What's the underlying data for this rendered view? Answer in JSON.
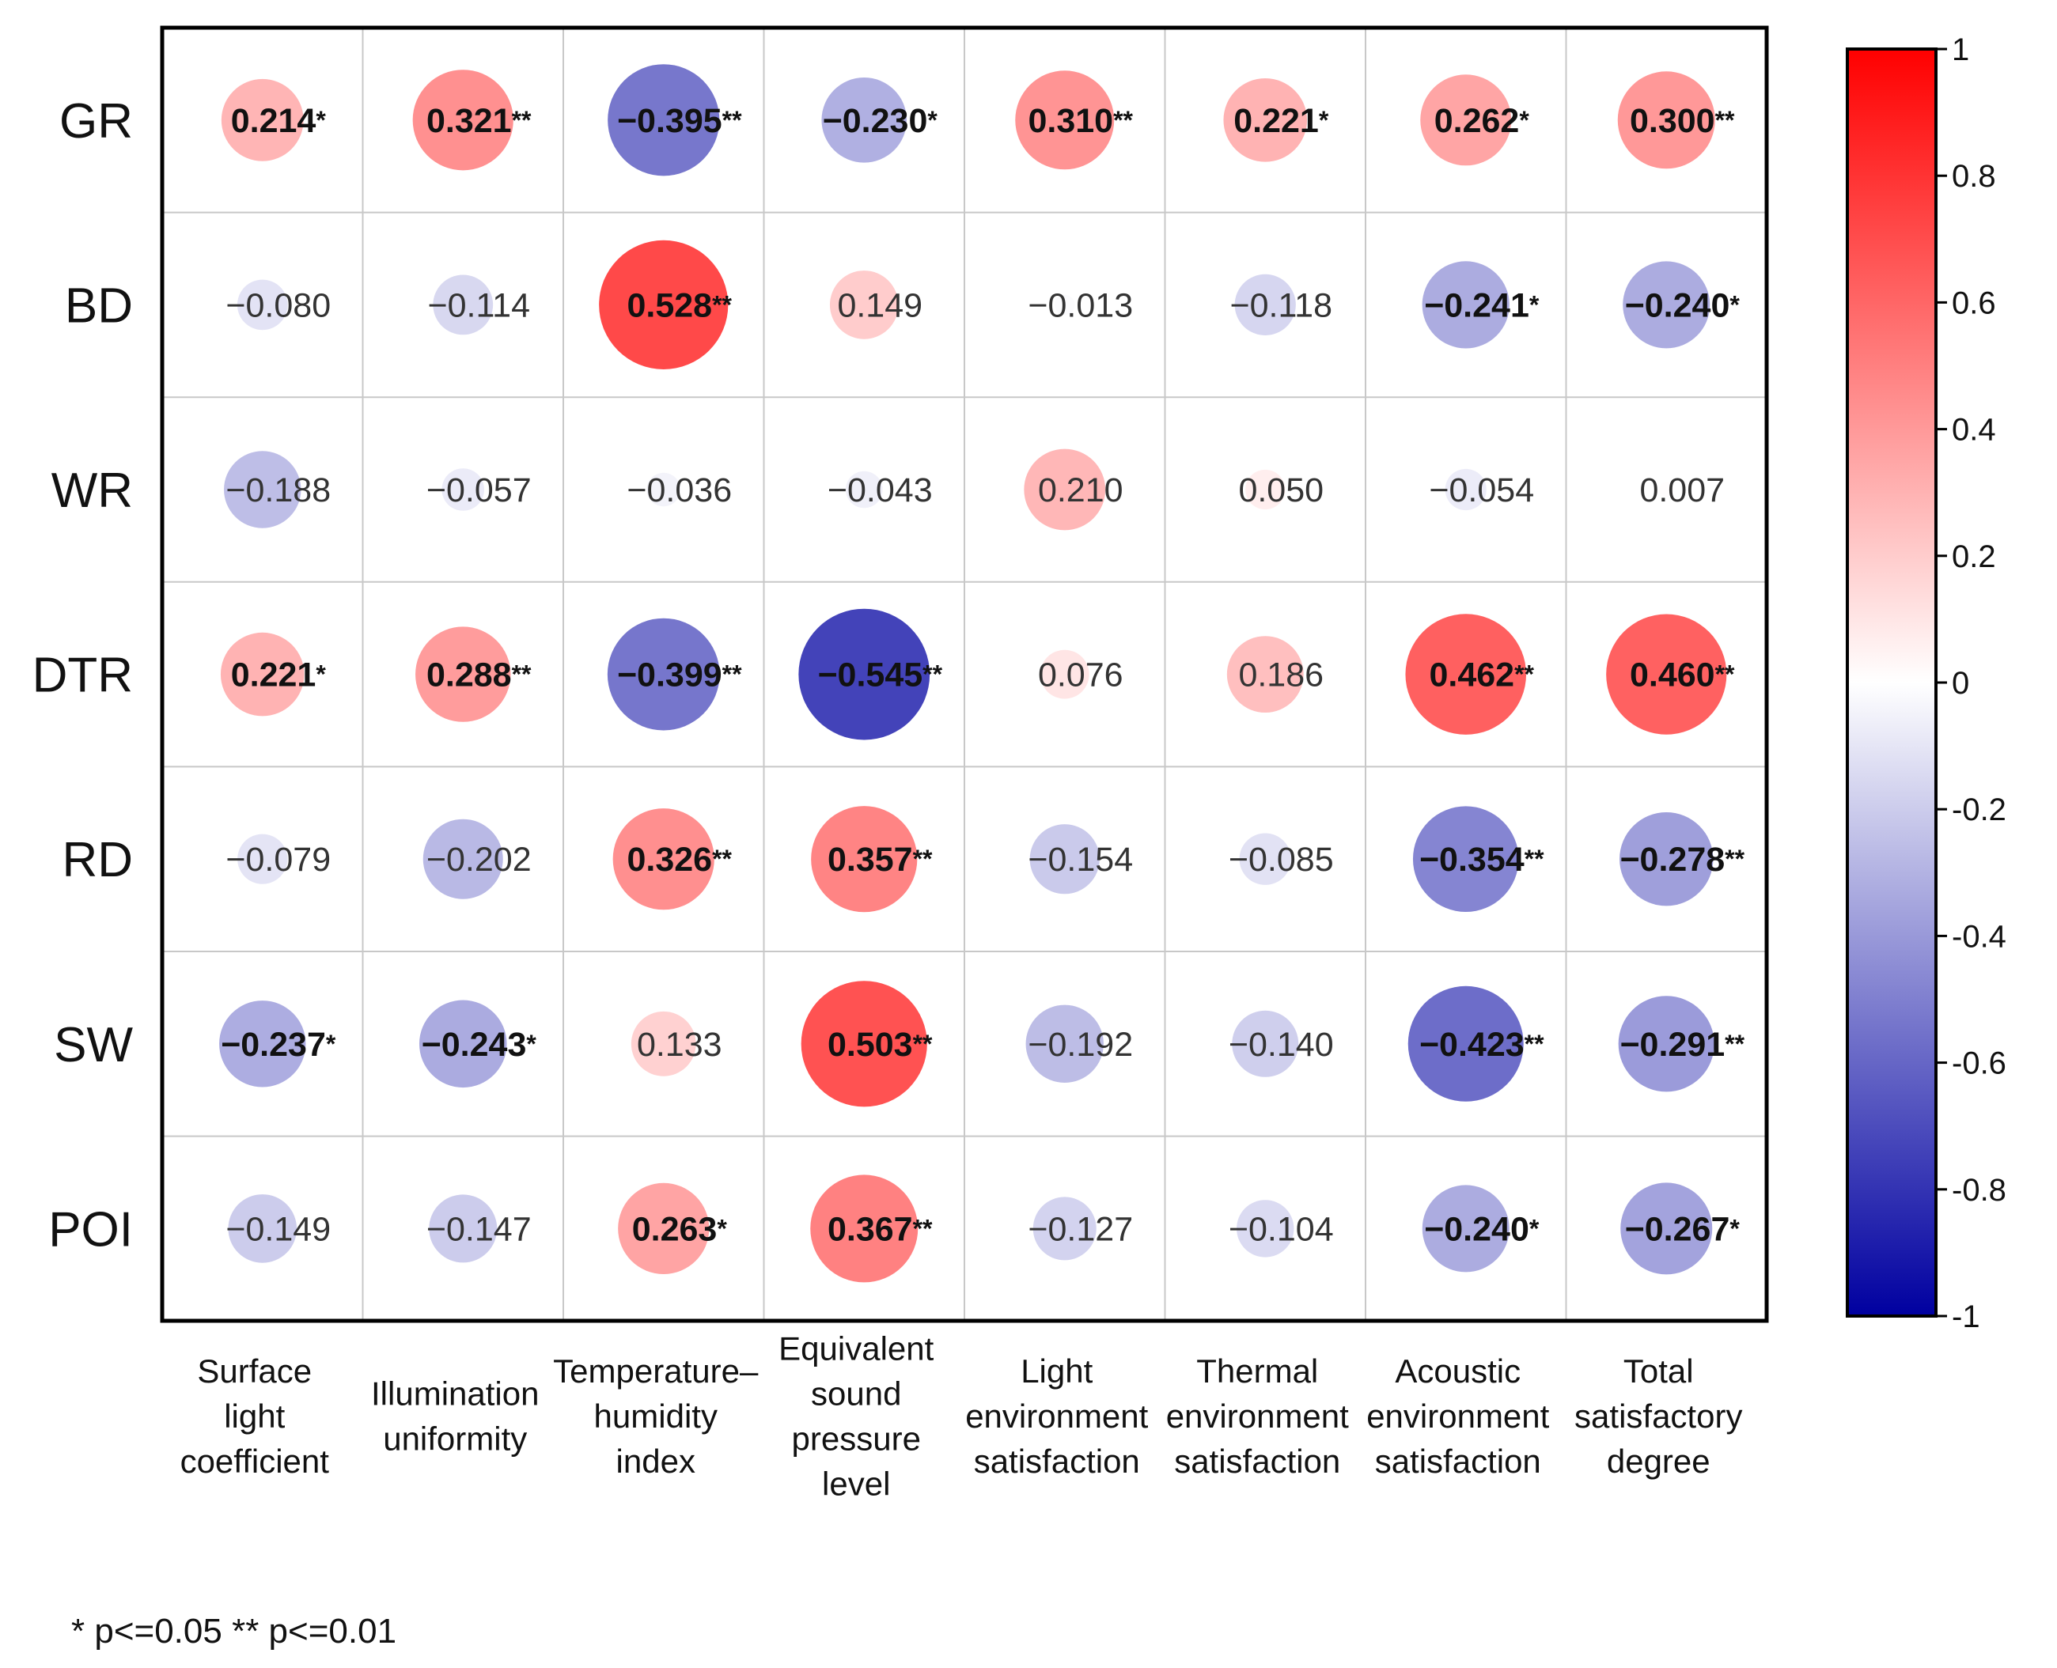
{
  "chart_data": {
    "type": "heatmap",
    "rows": [
      "GR",
      "BD",
      "WR",
      "DTR",
      "RD",
      "SW",
      "POI"
    ],
    "columns": [
      [
        "Surface",
        "light",
        "coefficient"
      ],
      [
        "Illumination",
        "uniformity"
      ],
      [
        "Temperature–",
        "humidity",
        "index"
      ],
      [
        "Equivalent",
        "sound",
        "pressure",
        "level"
      ],
      [
        "Light",
        "environment",
        "satisfaction"
      ],
      [
        "Thermal",
        "environment",
        "satisfaction"
      ],
      [
        "Acoustic",
        "environment",
        "satisfaction"
      ],
      [
        "Total",
        "satisfactory",
        "degree"
      ]
    ],
    "values": [
      [
        0.214,
        0.321,
        -0.395,
        -0.23,
        0.31,
        0.221,
        0.262,
        0.3
      ],
      [
        -0.08,
        -0.114,
        0.528,
        0.149,
        -0.013,
        -0.118,
        -0.241,
        -0.24
      ],
      [
        -0.188,
        -0.057,
        -0.036,
        -0.043,
        0.21,
        0.05,
        -0.054,
        0.007
      ],
      [
        0.221,
        0.288,
        -0.399,
        -0.545,
        0.076,
        0.186,
        0.462,
        0.46
      ],
      [
        -0.079,
        -0.202,
        0.326,
        0.357,
        -0.154,
        -0.085,
        -0.354,
        -0.278
      ],
      [
        -0.237,
        -0.243,
        0.133,
        0.503,
        -0.192,
        -0.14,
        -0.423,
        -0.291
      ],
      [
        -0.149,
        -0.147,
        0.263,
        0.367,
        -0.127,
        -0.104,
        -0.24,
        -0.267
      ]
    ],
    "labels": [
      [
        "0.214",
        "0.321",
        "−0.395",
        "−0.230",
        "0.310",
        "0.221",
        "0.262",
        "0.300"
      ],
      [
        "−0.080",
        "−0.114",
        "0.528",
        "0.149",
        "−0.013",
        "−0.118",
        "−0.241",
        "−0.240"
      ],
      [
        "−0.188",
        "−0.057",
        "−0.036",
        "−0.043",
        "0.210",
        "0.050",
        "−0.054",
        "0.007"
      ],
      [
        "0.221",
        "0.288",
        "−0.399",
        "−0.545",
        "0.076",
        "0.186",
        "0.462",
        "0.460"
      ],
      [
        "−0.079",
        "−0.202",
        "0.326",
        "0.357",
        "−0.154",
        "−0.085",
        "−0.354",
        "−0.278"
      ],
      [
        "−0.237",
        "−0.243",
        "0.133",
        "0.503",
        "−0.192",
        "−0.140",
        "−0.423",
        "−0.291"
      ],
      [
        "−0.149",
        "−0.147",
        "0.263",
        "0.367",
        "−0.127",
        "−0.104",
        "−0.240",
        "−0.267"
      ]
    ],
    "significance": [
      [
        "*",
        "**",
        "**",
        "*",
        "**",
        "*",
        "*",
        "**"
      ],
      [
        "",
        "",
        "**",
        "",
        "",
        "",
        "*",
        "*"
      ],
      [
        "",
        "",
        "",
        "",
        "",
        "",
        "",
        ""
      ],
      [
        "*",
        "**",
        "**",
        "**",
        "",
        "",
        "**",
        "**"
      ],
      [
        "",
        "",
        "**",
        "**",
        "",
        "",
        "**",
        "**"
      ],
      [
        "*",
        "*",
        "",
        "**",
        "",
        "",
        "**",
        "**"
      ],
      [
        "",
        "",
        "*",
        "**",
        "",
        "",
        "*",
        "*"
      ]
    ],
    "colorbar": {
      "range": [
        -1,
        1
      ],
      "ticks": [
        "1",
        "0.8",
        "0.6",
        "0.4",
        "0.2",
        "0",
        "-0.2",
        "-0.4",
        "-0.6",
        "-0.8",
        "-1"
      ],
      "colors": {
        "negative": "#0000a0",
        "zero": "#ffffff",
        "positive": "#ff0000"
      }
    },
    "footnote": "* p<=0.05  ** p<=0.01"
  }
}
